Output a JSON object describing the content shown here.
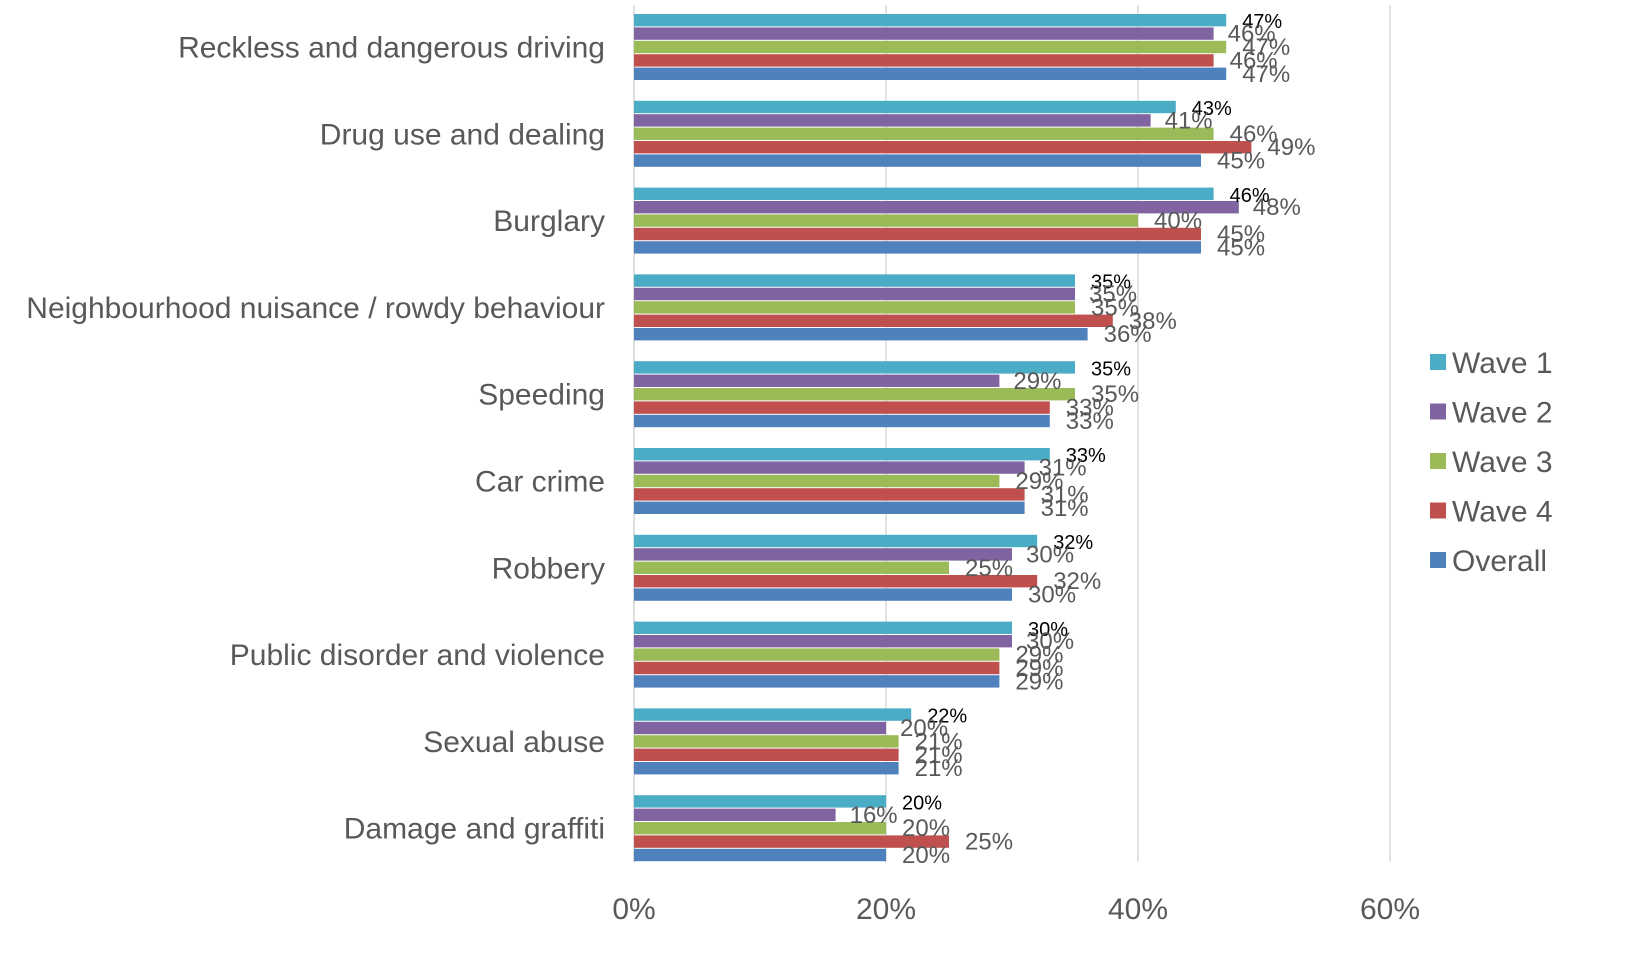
{
  "chart_data": {
    "type": "bar",
    "orientation": "horizontal",
    "categories": [
      "Reckless and dangerous driving",
      "Drug use and dealing",
      "Burglary",
      "Neighbourhood nuisance / rowdy behaviour",
      "Speeding",
      "Car crime",
      "Robbery",
      "Public disorder and violence",
      "Sexual abuse",
      "Damage and graffiti"
    ],
    "series": [
      {
        "name": "Wave 1",
        "color": "#4bacc6",
        "values": [
          47,
          43,
          46,
          35,
          35,
          33,
          32,
          30,
          22,
          20
        ],
        "labels": [
          "47%",
          "43%",
          "46%",
          "35%",
          "35%",
          "33%",
          "32%",
          "30%",
          "22%",
          "20%"
        ]
      },
      {
        "name": "Wave 2",
        "color": "#8064a2",
        "values": [
          46,
          41,
          48,
          35,
          29,
          31,
          30,
          30,
          20,
          16
        ],
        "labels": [
          "46%",
          "41%",
          "48%",
          "35%",
          "29%",
          "31%",
          "30%",
          "30%",
          "20%",
          "16%"
        ]
      },
      {
        "name": "Wave 3",
        "color": "#9bbb59",
        "values": [
          47,
          46,
          40,
          35,
          35,
          29,
          25,
          29,
          21,
          20
        ],
        "labels": [
          "47%",
          "46%",
          "40%",
          "35%",
          "35%",
          "29%",
          "25%",
          "29%",
          "21%",
          "20%"
        ]
      },
      {
        "name": "Wave 4",
        "color": "#c0504d",
        "values": [
          46,
          49,
          45,
          38,
          33,
          31,
          32,
          29,
          21,
          25
        ],
        "labels": [
          "46%",
          "49%",
          "45%",
          "38%",
          "33%",
          "31%",
          "32%",
          "29%",
          "21%",
          "25%"
        ]
      },
      {
        "name": "Overall",
        "color": "#4f81bd",
        "values": [
          47,
          45,
          45,
          36,
          33,
          31,
          30,
          29,
          21,
          20
        ],
        "labels": [
          "47%",
          "45%",
          "45%",
          "36%",
          "33%",
          "31%",
          "30%",
          "29%",
          "21%",
          "20%"
        ]
      }
    ],
    "x_ticks": [
      "0%",
      "20%",
      "40%",
      "60%"
    ],
    "xlim": [
      0,
      60
    ],
    "grid": true,
    "legend_position": "right",
    "title": "",
    "xlabel": "",
    "ylabel": ""
  }
}
